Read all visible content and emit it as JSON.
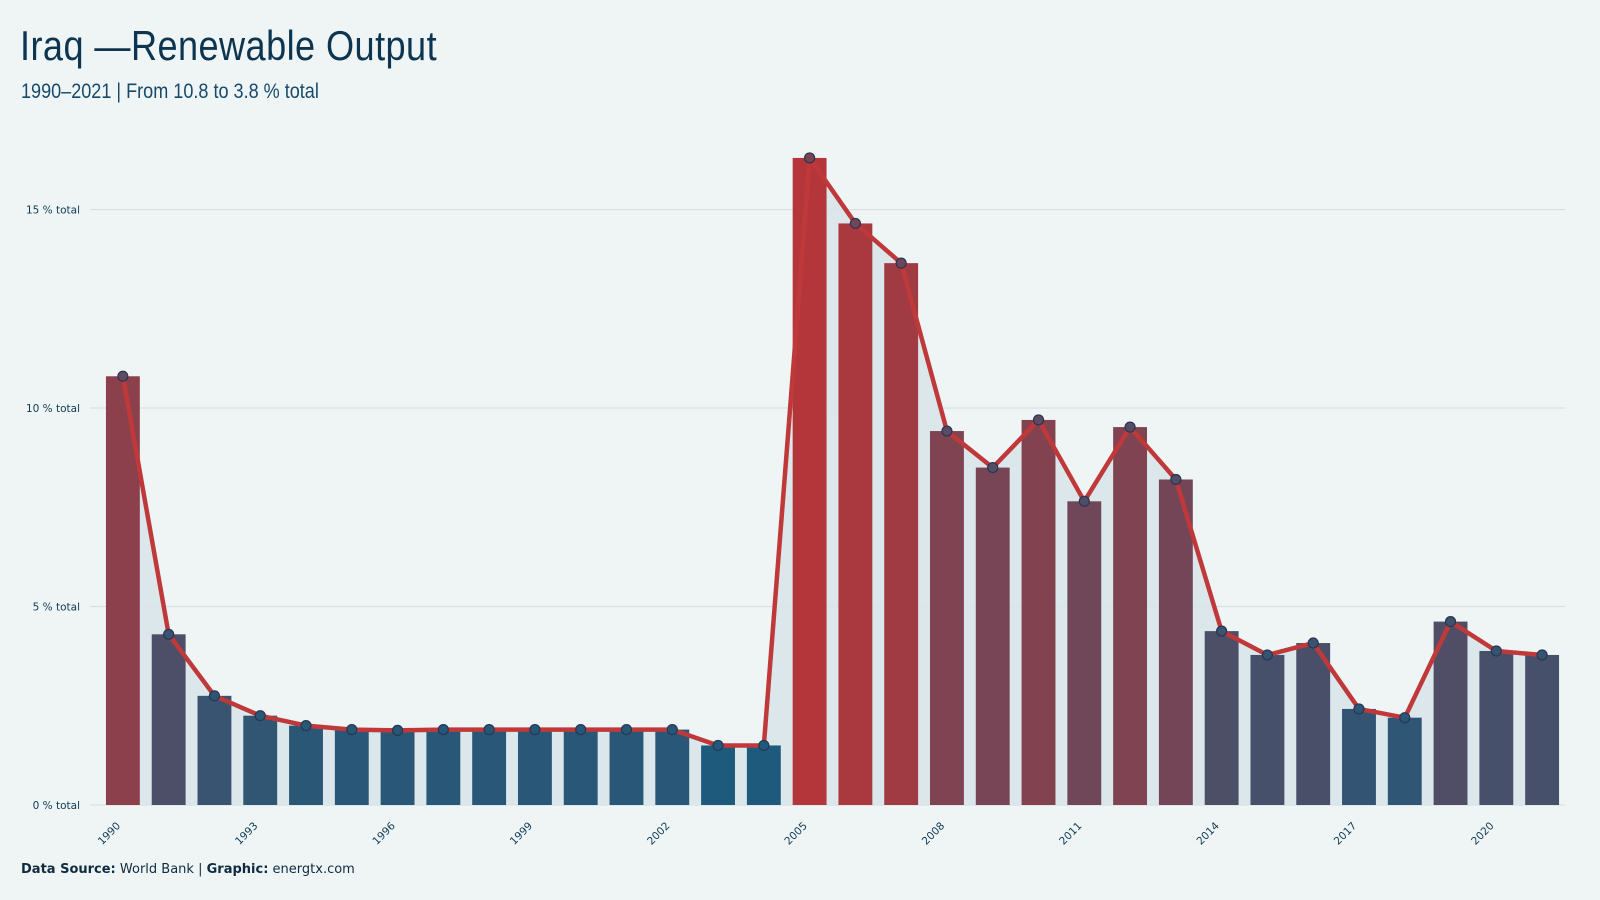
{
  "title": "Iraq —Renewable Output",
  "subtitle": "1990–2021 | From 10.8 to 3.8 % total",
  "footer": {
    "source_label": "Data Source:",
    "source_value": "World Bank",
    "graphic_label": "Graphic:",
    "graphic_value": "energtx.com",
    "separator": "|"
  },
  "colors": {
    "background": "#eff5f5",
    "line": "#c0393a",
    "low_bar": "#1d5a7c",
    "high_bar": "#b5363a",
    "area": "#d8e5e9",
    "grid": "#d5e0e4"
  },
  "chart_data": {
    "type": "bar",
    "title": "Iraq —Renewable Output",
    "subtitle": "1990–2021 | From 10.8 to 3.8 % total",
    "xlabel": "",
    "ylabel": "",
    "unit": "% total",
    "ylim": [
      0,
      16.5
    ],
    "yticks": [
      0,
      5,
      10,
      15
    ],
    "ytick_labels": [
      "0 % total",
      "5 % total",
      "10 % total",
      "15 % total"
    ],
    "xtick_labels": [
      "1990",
      "1993",
      "1996",
      "1999",
      "2002",
      "2005",
      "2008",
      "2011",
      "2014",
      "2017",
      "2020"
    ],
    "grid": true,
    "legend": "none",
    "overlay": "line with markers and shaded area",
    "categories": [
      1990,
      1991,
      1992,
      1993,
      1994,
      1995,
      1996,
      1997,
      1998,
      1999,
      2000,
      2001,
      2002,
      2003,
      2004,
      2005,
      2006,
      2007,
      2008,
      2009,
      2010,
      2011,
      2012,
      2013,
      2014,
      2015,
      2016,
      2017,
      2018,
      2019,
      2020,
      2021
    ],
    "values": [
      10.8,
      4.3,
      2.75,
      2.25,
      2.0,
      1.9,
      1.88,
      1.9,
      1.9,
      1.9,
      1.9,
      1.9,
      1.9,
      1.5,
      1.5,
      16.3,
      14.65,
      13.65,
      9.42,
      8.5,
      9.7,
      7.65,
      9.52,
      8.2,
      4.38,
      3.78,
      4.08,
      2.42,
      2.2,
      4.62,
      3.88,
      3.78
    ]
  }
}
